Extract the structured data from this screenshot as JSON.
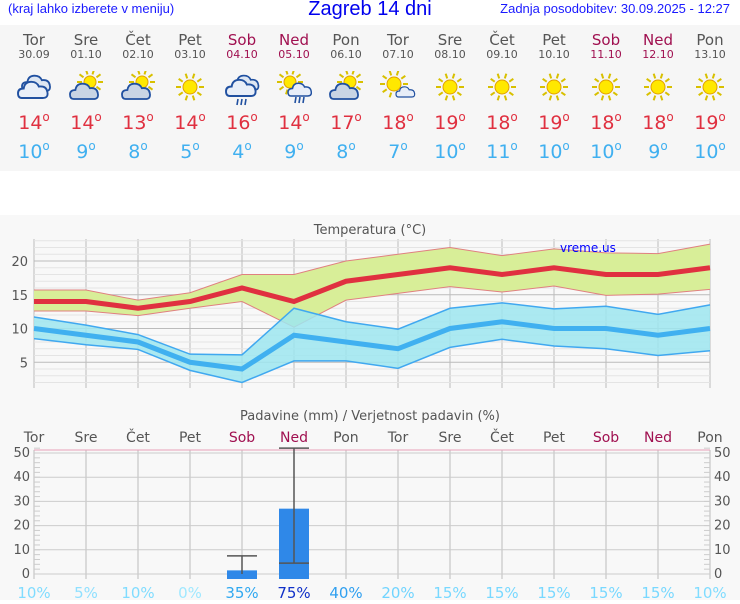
{
  "header": {
    "region_hint": "(kraj lahko izberete v meniju)",
    "title": "Zagreb 14 dni",
    "updated": "Zadnja posodobitev: 30.09.2025 - 12:27"
  },
  "colors": {
    "weekday": "#555555",
    "weekend": "#a01050",
    "high": "#e03040",
    "low": "#40b0f0",
    "bar": "#2f88e8"
  },
  "days": [
    {
      "name": "Tor",
      "date": "30.09",
      "icon": "cloudy",
      "high": "14",
      "low": "10",
      "weekend": false,
      "precip_prob": "10%",
      "prob_color": "#80dcff"
    },
    {
      "name": "Sre",
      "date": "01.10",
      "icon": "partly-cloudy",
      "high": "14",
      "low": "9",
      "weekend": false,
      "precip_prob": "5%",
      "prob_color": "#90e0ff"
    },
    {
      "name": "Čet",
      "date": "02.10",
      "icon": "partly-cloudy",
      "high": "13",
      "low": "8",
      "weekend": false,
      "precip_prob": "10%",
      "prob_color": "#80dcff"
    },
    {
      "name": "Pet",
      "date": "03.10",
      "icon": "sunny",
      "high": "14",
      "low": "5",
      "weekend": false,
      "precip_prob": "0%",
      "prob_color": "#a0e8ff"
    },
    {
      "name": "Sob",
      "date": "04.10",
      "icon": "rain-cloudy",
      "high": "16",
      "low": "4",
      "weekend": true,
      "precip_prob": "35%",
      "prob_color": "#30a8f0"
    },
    {
      "name": "Ned",
      "date": "05.10",
      "icon": "sun-rain",
      "high": "14",
      "low": "9",
      "weekend": true,
      "precip_prob": "75%",
      "prob_color": "#1030c8"
    },
    {
      "name": "Pon",
      "date": "06.10",
      "icon": "partly-cloudy",
      "high": "17",
      "low": "8",
      "weekend": false,
      "precip_prob": "40%",
      "prob_color": "#30a0f0"
    },
    {
      "name": "Tor",
      "date": "07.10",
      "icon": "sun-small-cloud",
      "high": "18",
      "low": "7",
      "weekend": false,
      "precip_prob": "20%",
      "prob_color": "#70d4ff"
    },
    {
      "name": "Sre",
      "date": "08.10",
      "icon": "sunny",
      "high": "19",
      "low": "10",
      "weekend": false,
      "precip_prob": "15%",
      "prob_color": "#78d8ff"
    },
    {
      "name": "Čet",
      "date": "09.10",
      "icon": "sunny",
      "high": "18",
      "low": "11",
      "weekend": false,
      "precip_prob": "15%",
      "prob_color": "#78d8ff"
    },
    {
      "name": "Pet",
      "date": "10.10",
      "icon": "sunny",
      "high": "19",
      "low": "10",
      "weekend": false,
      "precip_prob": "15%",
      "prob_color": "#78d8ff"
    },
    {
      "name": "Sob",
      "date": "11.10",
      "icon": "sunny",
      "high": "18",
      "low": "10",
      "weekend": true,
      "precip_prob": "15%",
      "prob_color": "#78d8ff"
    },
    {
      "name": "Ned",
      "date": "12.10",
      "icon": "sunny",
      "high": "18",
      "low": "9",
      "weekend": true,
      "precip_prob": "15%",
      "prob_color": "#78d8ff"
    },
    {
      "name": "Pon",
      "date": "13.10",
      "icon": "sunny",
      "high": "19",
      "low": "10",
      "weekend": false,
      "precip_prob": "10%",
      "prob_color": "#80dcff"
    }
  ],
  "chart_data": [
    {
      "type": "area",
      "title": "Temperatura (°C)",
      "watermark": "vreme.us",
      "ylim": [
        1.2,
        23.2
      ],
      "yticks": [
        5,
        10,
        15,
        20
      ],
      "grid": true,
      "series": [
        {
          "values": [
            14,
            14,
            13,
            14,
            16,
            14,
            17,
            18,
            19,
            18,
            19,
            18,
            18,
            19
          ],
          "upper": [
            15.7,
            15.7,
            14.2,
            15.3,
            18,
            18,
            20,
            21,
            22,
            20.8,
            21.8,
            21.2,
            21.1,
            22.5
          ],
          "lower": [
            12.6,
            12.6,
            11.9,
            13,
            14,
            10.2,
            14.2,
            15.2,
            16.2,
            15.4,
            16.3,
            14.9,
            15.1,
            15.8
          ],
          "color": "#e03040",
          "band": "#d8ee98"
        },
        {
          "values": [
            10,
            9,
            8,
            5,
            4,
            9,
            8,
            7,
            10,
            11,
            10,
            10,
            9,
            10
          ],
          "upper": [
            11.7,
            10.5,
            9.1,
            6.2,
            6.1,
            13,
            11,
            9.9,
            13,
            13.8,
            12.9,
            13.3,
            12.1,
            13.5
          ],
          "lower": [
            8.5,
            7.6,
            6.9,
            3.8,
            2,
            5.2,
            5.2,
            4.1,
            7.2,
            8.4,
            7.4,
            7,
            6,
            6.7
          ],
          "color": "#40b0f0",
          "band": "#9ee6f0"
        }
      ]
    },
    {
      "type": "bar",
      "title": "Padavine (mm) / Verjetnost padavin (%)",
      "ylim": [
        0,
        52
      ],
      "yticks": [
        0,
        10,
        20,
        30,
        40,
        50
      ],
      "grid": true,
      "values": [
        0,
        0,
        0,
        0,
        1.5,
        27,
        0,
        0,
        0,
        0,
        0,
        0,
        0,
        0
      ],
      "range_low": [
        null,
        null,
        null,
        null,
        0,
        4.5,
        null,
        null,
        null,
        null,
        null,
        null,
        null,
        null
      ],
      "range_high": [
        null,
        null,
        null,
        null,
        7.5,
        52,
        null,
        null,
        null,
        null,
        null,
        null,
        null,
        null
      ]
    }
  ]
}
